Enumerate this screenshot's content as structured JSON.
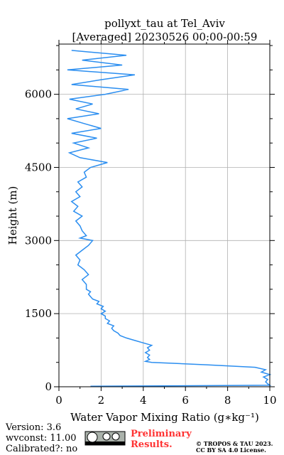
{
  "chart_data": {
    "type": "profile",
    "title": [
      "pollyxt_tau at Tel_Aviv",
      "[Averaged] 20230526 00:00-00:59"
    ],
    "xlabel": "Water Vapor Mixing Ratio (g∗kg⁻¹)",
    "ylabel": "Height (m)",
    "color": "#2b8ef0",
    "grid": true,
    "xlim": [
      0,
      10
    ],
    "xticks": [
      0,
      2,
      4,
      6,
      8,
      10
    ],
    "ylim": [
      0,
      7030
    ],
    "yticks": [
      0,
      1500,
      3000,
      4500,
      6000
    ],
    "heights": [
      10,
      30,
      60,
      100,
      150,
      200,
      250,
      300,
      350,
      400,
      450,
      480,
      500,
      520,
      540,
      560,
      600,
      650,
      700,
      750,
      800,
      850,
      900,
      950,
      1000,
      1050,
      1100,
      1150,
      1200,
      1250,
      1300,
      1350,
      1400,
      1450,
      1500,
      1550,
      1600,
      1650,
      1700,
      1750,
      1800,
      1850,
      1900,
      1950,
      2000,
      2100,
      2200,
      2300,
      2400,
      2500,
      2600,
      2700,
      2800,
      2900,
      3000,
      3050,
      3100,
      3200,
      3300,
      3400,
      3500,
      3600,
      3700,
      3800,
      3900,
      4000,
      4100,
      4200,
      4300,
      4400,
      4500,
      4600,
      4700,
      4800,
      4900,
      5000,
      5100,
      5200,
      5300,
      5400,
      5500,
      5600,
      5700,
      5800,
      5900,
      6000,
      6100,
      6200,
      6300,
      6400,
      6500,
      6600,
      6700,
      6800,
      6900
    ],
    "values": [
      1.5,
      10,
      9.9,
      9.8,
      9.9,
      9.7,
      10,
      9.6,
      9.8,
      9.3,
      7,
      5.5,
      4.4,
      4.1,
      4.2,
      4.3,
      4.2,
      4.3,
      4.1,
      4.3,
      4.2,
      4.4,
      4.0,
      3.6,
      3.2,
      2.9,
      2.8,
      2.6,
      2.5,
      2.6,
      2.3,
      2.4,
      2.2,
      2.2,
      2.0,
      2.2,
      2.0,
      2.1,
      1.8,
      1.9,
      1.6,
      1.5,
      1.4,
      1.5,
      1.3,
      1.3,
      1.1,
      1.4,
      1.2,
      0.9,
      1.0,
      0.8,
      1.1,
      1.4,
      1.6,
      1.0,
      1.3,
      1.1,
      1.0,
      0.8,
      1.1,
      0.7,
      0.9,
      0.6,
      1.0,
      0.8,
      1.1,
      0.9,
      1.3,
      1.2,
      1.5,
      2.3,
      1.0,
      0.5,
      1.4,
      0.7,
      1.8,
      0.6,
      2.0,
      1.2,
      0.4,
      1.9,
      0.8,
      1.6,
      0.5,
      2.2,
      3.3,
      0.6,
      2.0,
      3.6,
      0.4,
      3.0,
      1.1,
      3.2,
      0.6
    ]
  },
  "footer": {
    "version": "Version: 3.6",
    "wvconst": "wvconst:  11.00",
    "calibrated": "Calibrated?: no",
    "preliminary": [
      "Preliminary",
      "Results."
    ],
    "copyright": [
      "© TROPOS & TAU 2023.",
      "CC BY SA 4.0 License."
    ]
  }
}
